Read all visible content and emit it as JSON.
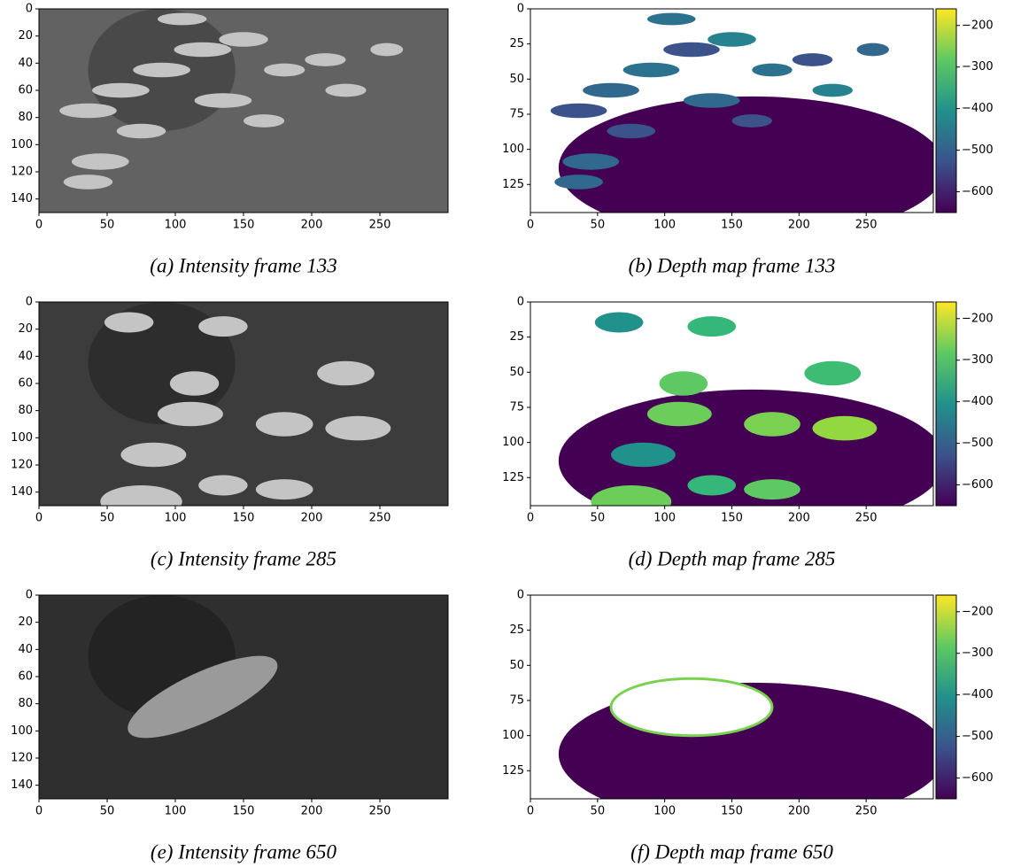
{
  "chart_data": [
    {
      "type": "image",
      "caption": "(a) Intensity frame 133",
      "xlim": [
        0,
        300
      ],
      "ylim": [
        0,
        150
      ],
      "y_inverted": true,
      "xticks": [
        0,
        50,
        100,
        150,
        200,
        250
      ],
      "yticks": [
        0,
        20,
        40,
        60,
        80,
        100,
        120,
        140
      ]
    },
    {
      "type": "depth",
      "caption": "(b) Depth map frame 133",
      "xlim": [
        0,
        300
      ],
      "ylim": [
        0,
        145
      ],
      "y_inverted": true,
      "xticks": [
        0,
        50,
        100,
        150,
        200,
        250
      ],
      "yticks": [
        0,
        25,
        50,
        75,
        100,
        125
      ],
      "colormap": "viridis",
      "clim": [
        -650,
        -160
      ],
      "cticks": [
        {
          "value": -200,
          "label": "−200"
        },
        {
          "value": -300,
          "label": "−300"
        },
        {
          "value": -400,
          "label": "−400"
        },
        {
          "value": -500,
          "label": "−500"
        },
        {
          "value": -600,
          "label": "−600"
        }
      ]
    },
    {
      "type": "image",
      "caption": "(c) Intensity frame 285",
      "xlim": [
        0,
        300
      ],
      "ylim": [
        0,
        150
      ],
      "y_inverted": true,
      "xticks": [
        0,
        50,
        100,
        150,
        200,
        250
      ],
      "yticks": [
        0,
        20,
        40,
        60,
        80,
        100,
        120,
        140
      ]
    },
    {
      "type": "depth",
      "caption": "(d) Depth map frame 285",
      "xlim": [
        0,
        300
      ],
      "ylim": [
        0,
        145
      ],
      "y_inverted": true,
      "xticks": [
        0,
        50,
        100,
        150,
        200,
        250
      ],
      "yticks": [
        0,
        25,
        50,
        75,
        100,
        125
      ],
      "colormap": "viridis",
      "clim": [
        -650,
        -160
      ],
      "cticks": [
        {
          "value": -200,
          "label": "−200"
        },
        {
          "value": -300,
          "label": "−300"
        },
        {
          "value": -400,
          "label": "−400"
        },
        {
          "value": -500,
          "label": "−500"
        },
        {
          "value": -600,
          "label": "−600"
        }
      ]
    },
    {
      "type": "image",
      "caption": "(e) Intensity frame 650",
      "xlim": [
        0,
        300
      ],
      "ylim": [
        0,
        150
      ],
      "y_inverted": true,
      "xticks": [
        0,
        50,
        100,
        150,
        200,
        250
      ],
      "yticks": [
        0,
        20,
        40,
        60,
        80,
        100,
        120,
        140
      ]
    },
    {
      "type": "depth",
      "caption": "(f) Depth map frame 650",
      "xlim": [
        0,
        300
      ],
      "ylim": [
        0,
        145
      ],
      "y_inverted": true,
      "xticks": [
        0,
        50,
        100,
        150,
        200,
        250
      ],
      "yticks": [
        0,
        25,
        50,
        75,
        100,
        125
      ],
      "colormap": "viridis",
      "clim": [
        -650,
        -160
      ],
      "cticks": [
        {
          "value": -200,
          "label": "−200"
        },
        {
          "value": -300,
          "label": "−300"
        },
        {
          "value": -400,
          "label": "−400"
        },
        {
          "value": -500,
          "label": "−500"
        },
        {
          "value": -600,
          "label": "−600"
        }
      ]
    }
  ]
}
